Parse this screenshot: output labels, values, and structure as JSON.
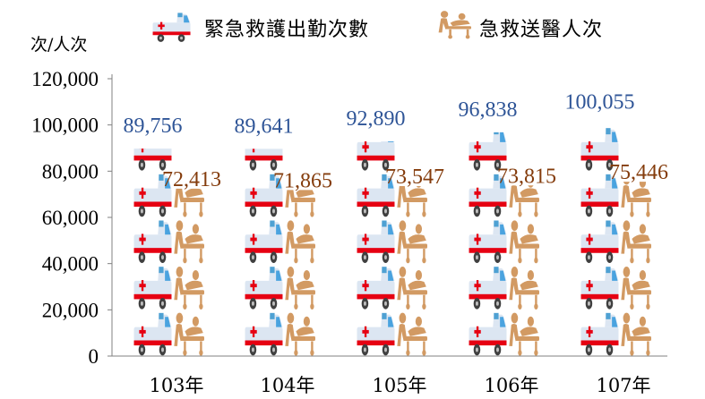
{
  "chart_data": {
    "type": "bar",
    "unit_label": "次/人次",
    "categories": [
      "103年",
      "104年",
      "105年",
      "106年",
      "107年"
    ],
    "series": [
      {
        "name": "緊急救護出勤次數",
        "values": [
          89756,
          89641,
          92890,
          96838,
          100055
        ],
        "labels": [
          "89,756",
          "89,641",
          "92,890",
          "96,838",
          "100,055"
        ],
        "color": "#2f5597",
        "icon": "ambulance-icon"
      },
      {
        "name": "急救送醫人次",
        "values": [
          72413,
          71865,
          73547,
          73815,
          75446
        ],
        "labels": [
          "72,413",
          "71,865",
          "73,547",
          "73,815",
          "75,446"
        ],
        "color": "#843c0c",
        "icon": "stretcher-icon"
      }
    ],
    "yticks": [
      "0",
      "20,000",
      "40,000",
      "60,000",
      "80,000",
      "100,000",
      "120,000"
    ],
    "ylim": [
      0,
      120000
    ],
    "ytick_step": 20000,
    "grid": false,
    "legend_position": "top",
    "bar_style": "stacked pictogram icons"
  }
}
